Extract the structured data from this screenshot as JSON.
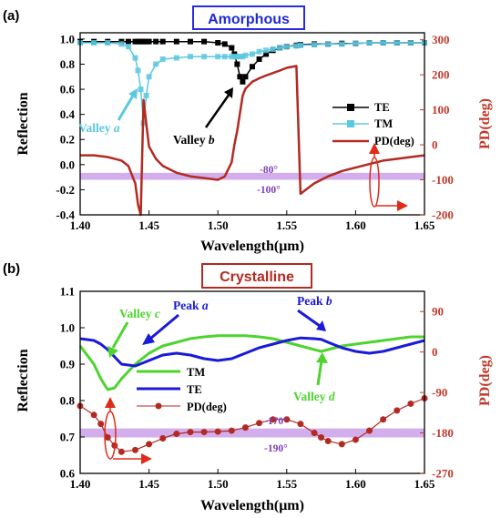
{
  "colors": {
    "te_a": "#000000",
    "tm_a": "#5bc8e0",
    "pd": "#b22a22",
    "band": "#c79ae8",
    "title_a_border": "#2a2ae0",
    "title_a_text": "#1f2ad0",
    "title_b_border": "#b22a22",
    "title_b_text": "#b22a22",
    "tm_b": "#4ed42e",
    "te_b": "#1a1ad8",
    "pd_axis": "#c0392b",
    "arrow_red": "#e02a1a",
    "band_text": "#7a3fb5"
  },
  "chart_data": [
    {
      "id": "a",
      "type": "line",
      "panel_label": "(a)",
      "title": "Amorphous",
      "xlabel": "Wavelength(μm)",
      "ylabel": "Reflection",
      "y2label": "PD(deg)",
      "xlim": [
        1.4,
        1.65
      ],
      "ylim": [
        -0.4,
        1.05
      ],
      "y2lim": [
        -200,
        320
      ],
      "xticks": [
        "1.40",
        "1.45",
        "1.50",
        "1.55",
        "1.60",
        "1.65"
      ],
      "yticks": [
        "-0.4",
        "-0.2",
        "0.0",
        "0.2",
        "0.4",
        "0.6",
        "0.8",
        "1.0"
      ],
      "y2ticks": [
        "-200",
        "-100",
        "0",
        "100",
        "200",
        "300"
      ],
      "legend": [
        "TE",
        "TM",
        "PD(deg)"
      ],
      "band_labels": [
        "-80°",
        "-100°"
      ],
      "band_range": [
        -100,
        -80
      ],
      "annotations": [
        {
          "prefix": "Valley ",
          "var": "a"
        },
        {
          "prefix": "Valley ",
          "var": "b"
        }
      ],
      "x": [
        1.4,
        1.41,
        1.42,
        1.43,
        1.435,
        1.44,
        1.442,
        1.444,
        1.446,
        1.448,
        1.45,
        1.455,
        1.46,
        1.47,
        1.48,
        1.49,
        1.5,
        1.505,
        1.51,
        1.512,
        1.514,
        1.516,
        1.518,
        1.52,
        1.525,
        1.53,
        1.535,
        1.54,
        1.545,
        1.55,
        1.557,
        1.56,
        1.57,
        1.58,
        1.59,
        1.6,
        1.61,
        1.62,
        1.63,
        1.64,
        1.65
      ],
      "series": [
        {
          "name": "TE",
          "axis": "left",
          "marker": "square",
          "values": [
            0.98,
            0.98,
            0.98,
            0.98,
            0.98,
            0.98,
            0.98,
            0.98,
            0.98,
            0.98,
            0.98,
            0.98,
            0.98,
            0.98,
            0.98,
            0.98,
            0.97,
            0.96,
            0.93,
            0.88,
            0.8,
            0.7,
            0.66,
            0.7,
            0.78,
            0.84,
            0.88,
            0.91,
            0.93,
            0.94,
            0.95,
            0.955,
            0.96,
            0.96,
            0.965,
            0.965,
            0.97,
            0.97,
            0.97,
            0.97,
            0.97
          ]
        },
        {
          "name": "TM",
          "axis": "left",
          "marker": "star",
          "values": [
            0.97,
            0.97,
            0.97,
            0.96,
            0.94,
            0.85,
            0.75,
            0.6,
            0.33,
            0.55,
            0.7,
            0.8,
            0.84,
            0.85,
            0.86,
            0.86,
            0.86,
            0.86,
            0.86,
            0.86,
            0.86,
            0.86,
            0.86,
            0.87,
            0.88,
            0.9,
            0.91,
            0.92,
            0.93,
            0.94,
            0.945,
            0.95,
            0.955,
            0.96,
            0.96,
            0.965,
            0.97,
            0.97,
            0.97,
            0.97,
            0.97
          ]
        },
        {
          "name": "PD(deg)",
          "axis": "right",
          "values": [
            -30,
            -30,
            -35,
            -45,
            -60,
            -110,
            -170,
            -200,
            128,
            60,
            -5,
            -40,
            -60,
            -80,
            -90,
            -95,
            -100,
            -90,
            -50,
            0,
            40,
            90,
            140,
            160,
            180,
            190,
            198,
            205,
            212,
            220,
            225,
            -140,
            -110,
            -90,
            -75,
            -65,
            -55,
            -45,
            -40,
            -35,
            -30
          ]
        }
      ]
    },
    {
      "id": "b",
      "type": "line",
      "panel_label": "(b)",
      "title": "Crystalline",
      "xlabel": "Wavelength(μm)",
      "ylabel": "Reflection",
      "y2label": "PD(deg)",
      "xlim": [
        1.4,
        1.65
      ],
      "ylim": [
        0.6,
        1.1
      ],
      "y2lim": [
        -270,
        135
      ],
      "xticks": [
        "1.40",
        "1.45",
        "1.50",
        "1.55",
        "1.60",
        "1.65"
      ],
      "yticks": [
        "0.6",
        "0.7",
        "0.8",
        "0.9",
        "1.0",
        "1.1"
      ],
      "y2ticks": [
        "-270",
        "-180",
        "-90",
        "0",
        "90"
      ],
      "legend": [
        "TM",
        "TE",
        "PD(deg)"
      ],
      "band_labels": [
        "-170°",
        "-190°"
      ],
      "band_range": [
        -190,
        -170
      ],
      "annotations": [
        {
          "prefix": "Valley ",
          "var": "c"
        },
        {
          "prefix": "Peak ",
          "var": "a"
        },
        {
          "prefix": "Peak ",
          "var": "b"
        },
        {
          "prefix": "Valley ",
          "var": "d"
        }
      ],
      "x": [
        1.4,
        1.41,
        1.415,
        1.42,
        1.425,
        1.43,
        1.44,
        1.45,
        1.46,
        1.47,
        1.48,
        1.49,
        1.5,
        1.51,
        1.52,
        1.53,
        1.54,
        1.55,
        1.56,
        1.57,
        1.575,
        1.58,
        1.59,
        1.6,
        1.61,
        1.62,
        1.63,
        1.64,
        1.65
      ],
      "series": [
        {
          "name": "TM",
          "axis": "left",
          "values": [
            0.95,
            0.9,
            0.86,
            0.83,
            0.835,
            0.86,
            0.9,
            0.93,
            0.95,
            0.96,
            0.97,
            0.975,
            0.978,
            0.978,
            0.978,
            0.975,
            0.97,
            0.96,
            0.95,
            0.94,
            0.935,
            0.94,
            0.95,
            0.955,
            0.96,
            0.965,
            0.97,
            0.975,
            0.975
          ]
        },
        {
          "name": "TE",
          "axis": "left",
          "values": [
            0.97,
            0.965,
            0.955,
            0.94,
            0.92,
            0.9,
            0.895,
            0.91,
            0.925,
            0.93,
            0.925,
            0.915,
            0.91,
            0.915,
            0.93,
            0.945,
            0.955,
            0.965,
            0.972,
            0.97,
            0.968,
            0.96,
            0.945,
            0.935,
            0.93,
            0.935,
            0.945,
            0.955,
            0.965
          ]
        },
        {
          "name": "PD(deg)",
          "axis": "right",
          "marker": "circle",
          "values": [
            -120,
            -140,
            -160,
            -190,
            -208,
            -222,
            -218,
            -205,
            -192,
            -182,
            -178,
            -178,
            -177,
            -175,
            -168,
            -158,
            -150,
            -150,
            -160,
            -180,
            -190,
            -198,
            -205,
            -195,
            -175,
            -150,
            -130,
            -115,
            -103
          ]
        }
      ]
    }
  ]
}
